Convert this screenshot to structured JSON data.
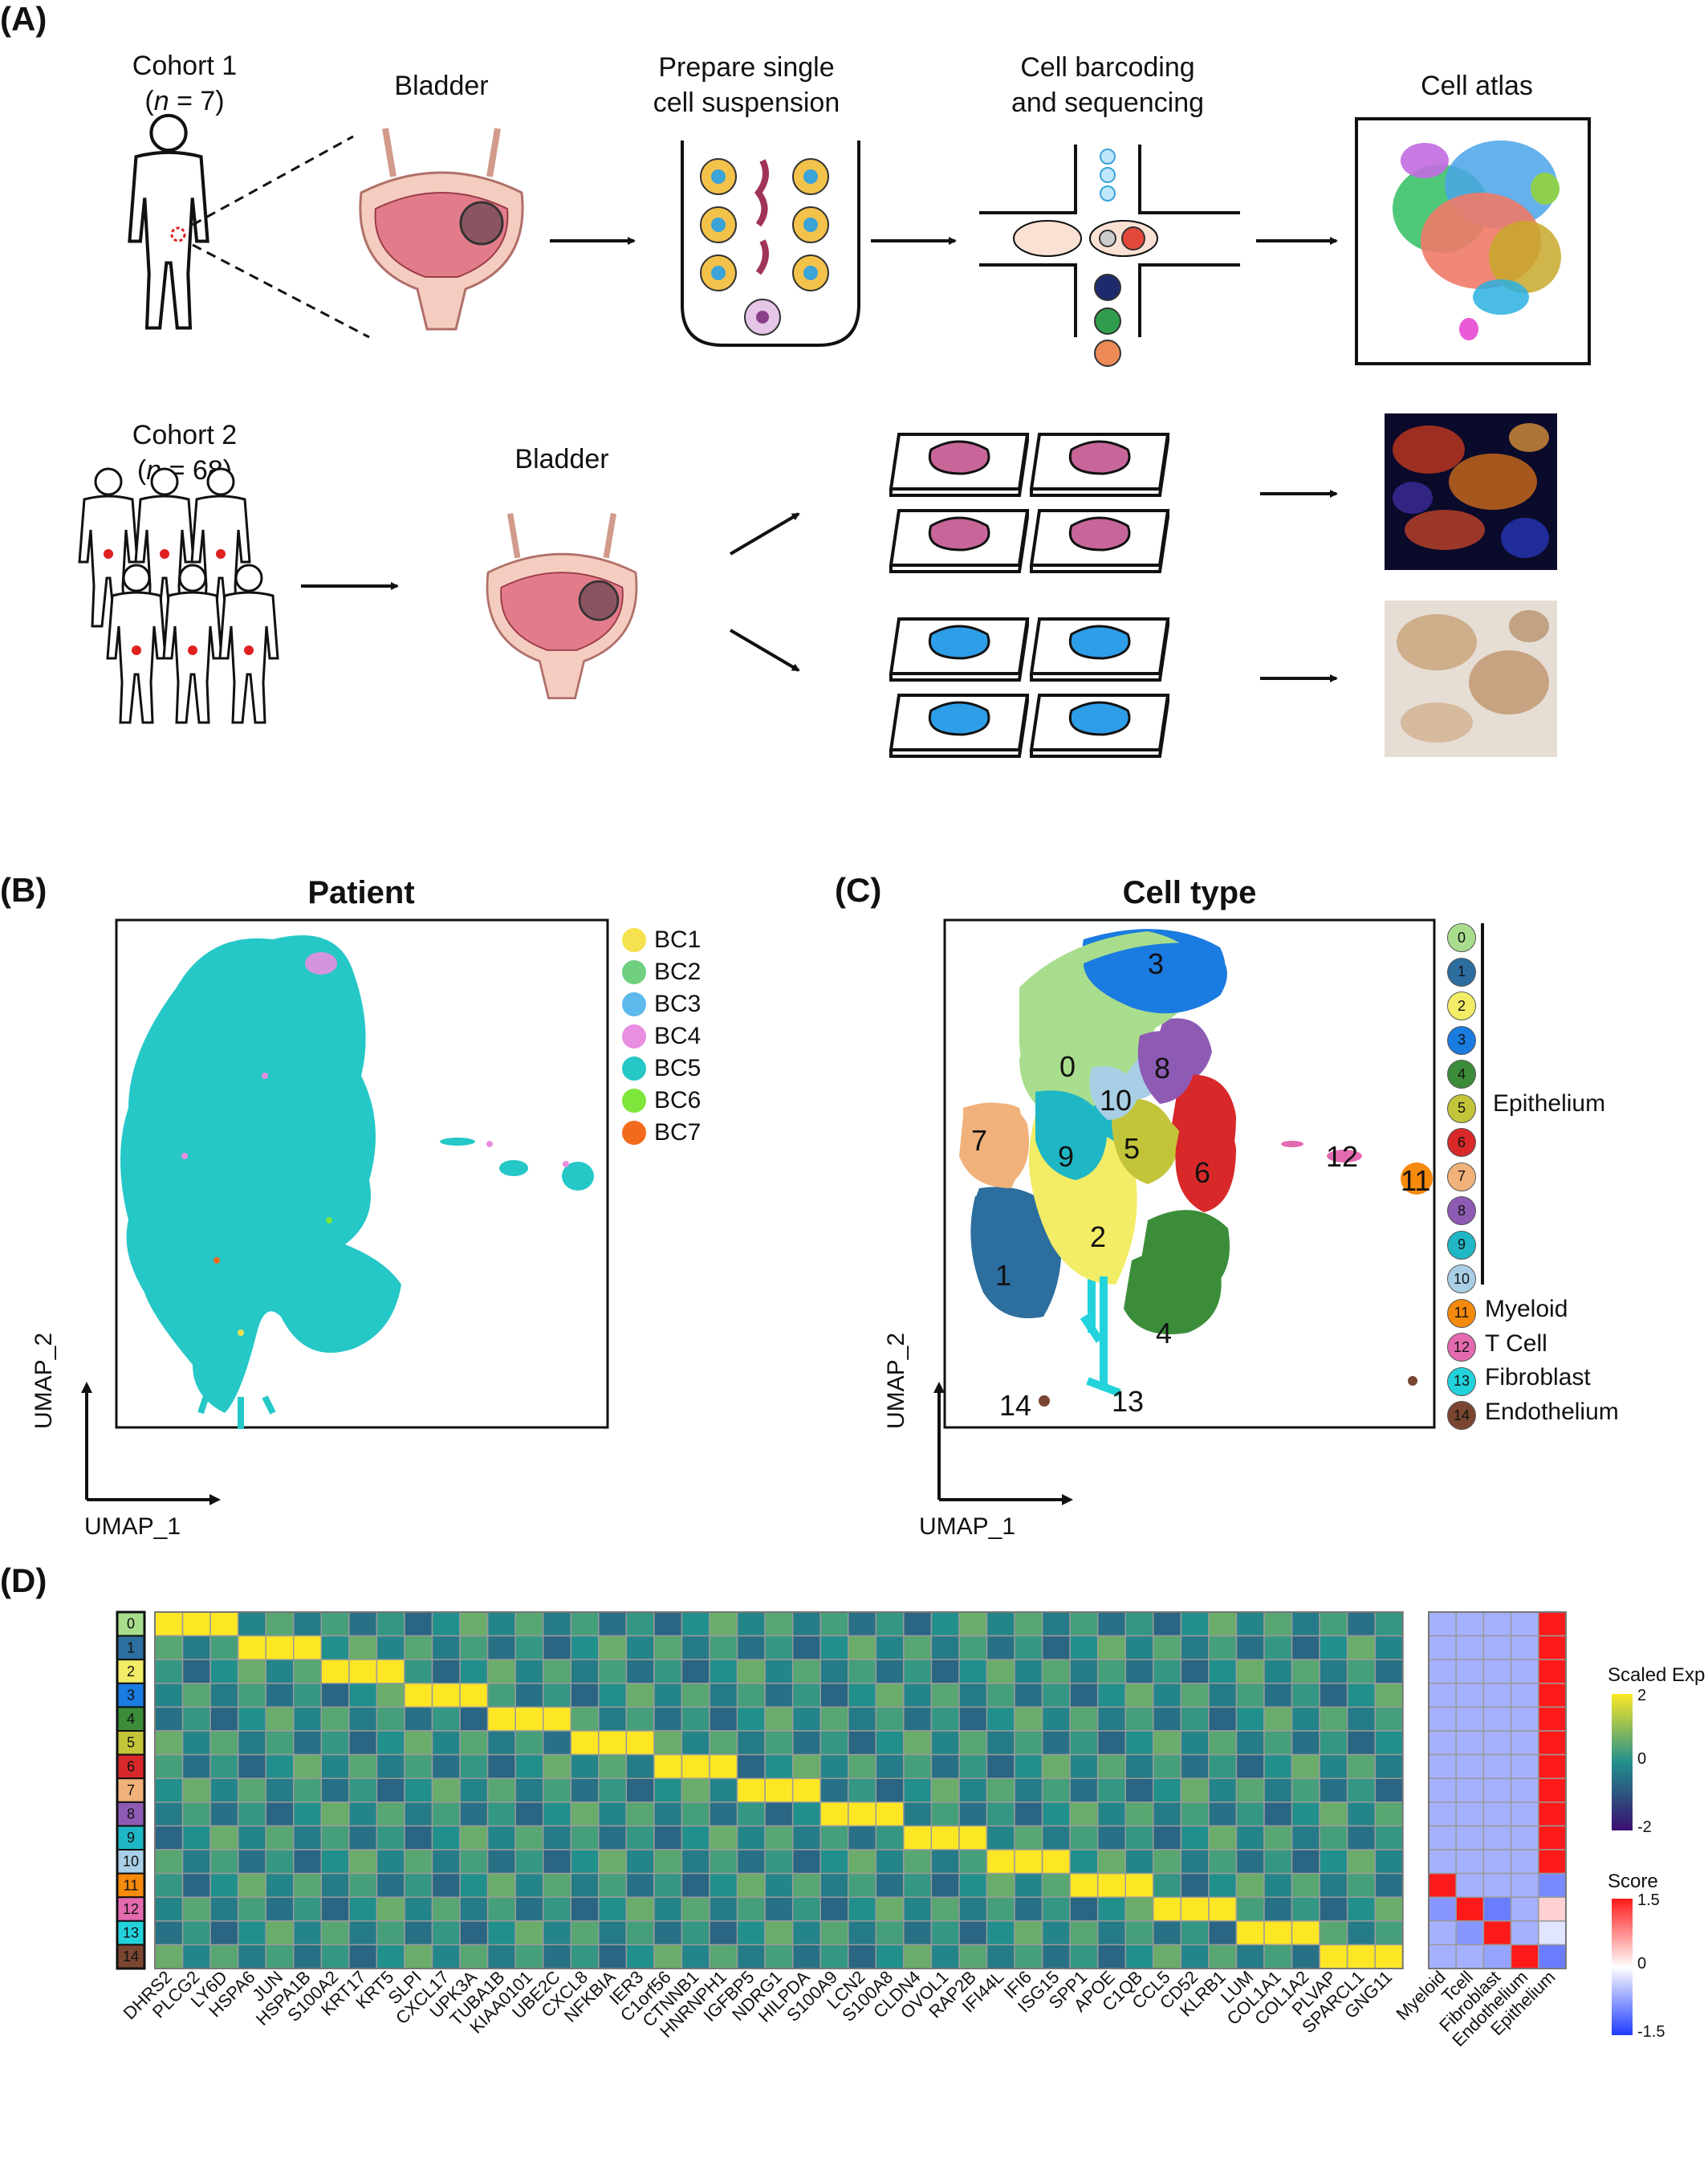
{
  "panels": {
    "a": "(A)",
    "b": "(B)",
    "c": "(C)",
    "d": "(D)"
  },
  "panelA": {
    "cohort1_title": "Cohort 1",
    "cohort1_n_label": "n",
    "cohort1_n_value": " = 7)",
    "bladder_label": "Bladder",
    "prepare_line1": "Prepare single",
    "prepare_line2": "cell suspension",
    "barcode_line1": "Cell barcoding",
    "barcode_line2": "and sequencing",
    "atlas_label": "Cell atlas",
    "cohort2_title": "Cohort 2",
    "cohort2_n_label": "n",
    "cohort2_n_value": " = 68)",
    "bladder2_label": "Bladder"
  },
  "panelB": {
    "title": "Patient",
    "x_axis": "UMAP_1",
    "y_axis": "UMAP_2",
    "legend": [
      {
        "label": "BC1",
        "color": "#f6e14e"
      },
      {
        "label": "BC2",
        "color": "#6fcf7f"
      },
      {
        "label": "BC3",
        "color": "#5db8ec"
      },
      {
        "label": "BC4",
        "color": "#e98ee0"
      },
      {
        "label": "BC5",
        "color": "#25c7c7"
      },
      {
        "label": "BC6",
        "color": "#7ee63a"
      },
      {
        "label": "BC7",
        "color": "#f26b1d"
      }
    ]
  },
  "panelC": {
    "title": "Cell type",
    "x_axis": "UMAP_1",
    "y_axis": "UMAP_2",
    "clusters": [
      {
        "id": "0",
        "color": "#a9dd8e"
      },
      {
        "id": "1",
        "color": "#2c6e9e"
      },
      {
        "id": "2",
        "color": "#f2ec66"
      },
      {
        "id": "3",
        "color": "#1a7be0"
      },
      {
        "id": "4",
        "color": "#3c8d3a"
      },
      {
        "id": "5",
        "color": "#c2c43a"
      },
      {
        "id": "6",
        "color": "#d8282a"
      },
      {
        "id": "7",
        "color": "#f0b27a"
      },
      {
        "id": "8",
        "color": "#8e5bb4"
      },
      {
        "id": "9",
        "color": "#1fb7c5"
      },
      {
        "id": "10",
        "color": "#a9cfe6"
      },
      {
        "id": "11",
        "color": "#f58a0c"
      },
      {
        "id": "12",
        "color": "#e46ab0"
      },
      {
        "id": "13",
        "color": "#23d3dc"
      },
      {
        "id": "14",
        "color": "#7a4631"
      }
    ],
    "epithelium_label": "Epithelium",
    "other_labels": [
      "Myeloid",
      "T Cell",
      "Fibroblast",
      "Endothelium"
    ]
  },
  "panelD": {
    "row_labels": [
      "0",
      "1",
      "2",
      "3",
      "4",
      "5",
      "6",
      "7",
      "8",
      "9",
      "10",
      "11",
      "12",
      "13",
      "14"
    ],
    "genes": [
      "DHRS2",
      "PLCG2",
      "LY6D",
      "HSPA6",
      "JUN",
      "HSPA1B",
      "S100A2",
      "KRT17",
      "KRT5",
      "SLPI",
      "CXCL17",
      "UPK3A",
      "TUBA1B",
      "KIAA0101",
      "UBE2C",
      "CXCL8",
      "NFKBIA",
      "IER3",
      "C1orf56",
      "CTNNB1",
      "HNRNPH1",
      "IGFBP5",
      "NDRG1",
      "HILPDA",
      "S100A9",
      "LCN2",
      "S100A8",
      "CLDN4",
      "OVOL1",
      "RAP2B",
      "IFI44L",
      "IFI6",
      "ISG15",
      "SPP1",
      "APOE",
      "C1QB",
      "CCL5",
      "CD52",
      "KLRB1",
      "LUM",
      "COL1A1",
      "COL1A2",
      "PLVAP",
      "SPARCL1",
      "GNG11"
    ],
    "score_columns": [
      "Myeloid",
      "Tcell",
      "Fibroblast",
      "Endothelium",
      "Epithelium"
    ],
    "scaled_exp_title": "Scaled Exp",
    "scaled_exp_ticks": [
      "2",
      "0",
      "-2"
    ],
    "score_title": "Score",
    "score_ticks": [
      "1.5",
      "0",
      "-1.5"
    ],
    "score_matrix": [
      [
        -0.6,
        -0.6,
        -0.6,
        -0.6,
        1.5
      ],
      [
        -0.6,
        -0.6,
        -0.6,
        -0.6,
        1.5
      ],
      [
        -0.6,
        -0.6,
        -0.6,
        -0.6,
        1.5
      ],
      [
        -0.6,
        -0.6,
        -0.6,
        -0.6,
        1.5
      ],
      [
        -0.6,
        -0.6,
        -0.6,
        -0.6,
        1.5
      ],
      [
        -0.6,
        -0.6,
        -0.6,
        -0.6,
        1.5
      ],
      [
        -0.6,
        -0.6,
        -0.6,
        -0.6,
        1.5
      ],
      [
        -0.6,
        -0.6,
        -0.6,
        -0.6,
        1.5
      ],
      [
        -0.6,
        -0.6,
        -0.6,
        -0.6,
        1.5
      ],
      [
        -0.6,
        -0.6,
        -0.6,
        -0.6,
        1.5
      ],
      [
        -0.6,
        -0.6,
        -0.6,
        -0.6,
        1.5
      ],
      [
        1.5,
        -0.6,
        -0.6,
        -0.6,
        -0.9
      ],
      [
        -0.8,
        1.5,
        -1.0,
        -0.6,
        0.3
      ],
      [
        -0.6,
        -0.8,
        1.5,
        -0.6,
        -0.2
      ],
      [
        -0.6,
        -0.6,
        -0.7,
        1.5,
        -1.0
      ]
    ]
  },
  "colors": {
    "exp_low": "#3b0f70",
    "exp_mid": "#21908c",
    "exp_high": "#fde725",
    "score_low": "#1f3cff",
    "score_mid": "#ffffff",
    "score_high": "#ff1a1a"
  }
}
